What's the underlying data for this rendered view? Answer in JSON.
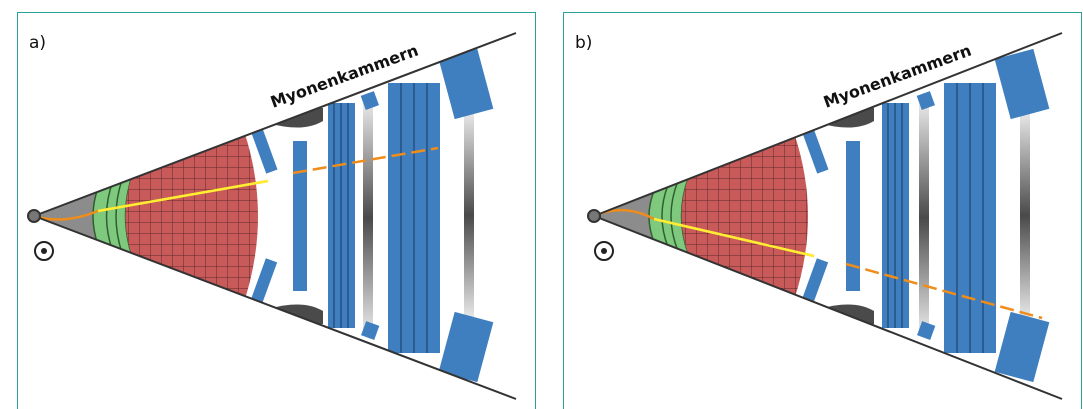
{
  "panels": [
    {
      "id": "a",
      "label": "a)",
      "muon_chambers_label": "Myonenkammern",
      "track_direction": "up"
    },
    {
      "id": "b",
      "label": "b)",
      "muon_chambers_label": "Myonenkammern",
      "track_direction": "down"
    }
  ],
  "colors": {
    "frame": "#2aa198",
    "beam_cone": "#8c8c8c",
    "tracker": "#7fc97f",
    "calorimeter": "#c95a5a",
    "muon_chamber": "#3f7fbf",
    "magnet_core": "#4a4a4a",
    "track_inner": "#ffee33",
    "track_outer": "#f08c1a"
  },
  "icons": [
    "interaction-point-icon",
    "field-out-of-page-icon"
  ]
}
